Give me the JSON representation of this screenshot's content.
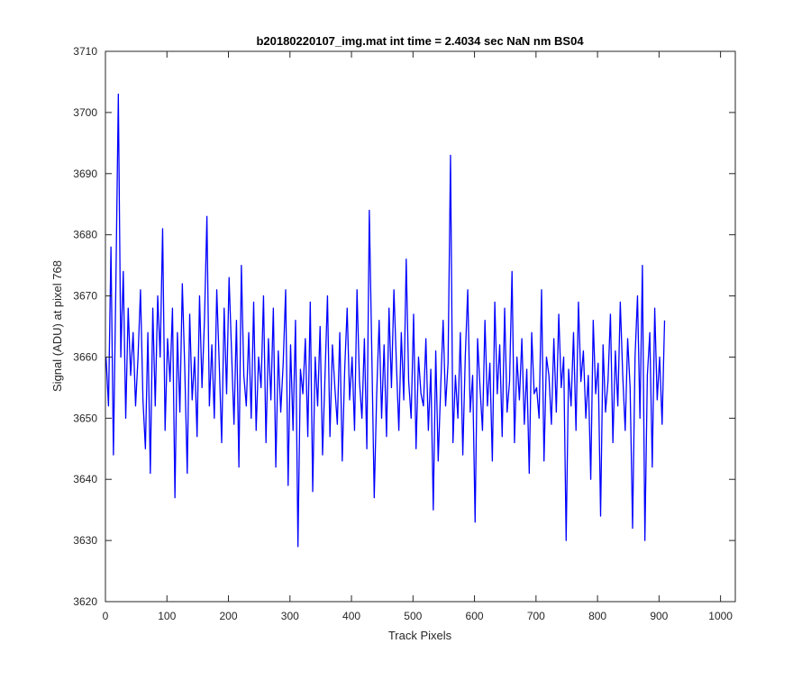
{
  "chart_data": {
    "type": "line",
    "title": "b20180220107_img.mat int time = 2.4034 sec  NaN nm BS04",
    "xlabel": "Track Pixels",
    "ylabel": "Signal (ADU) at pixel 768",
    "xlim": [
      0,
      1024
    ],
    "ylim": [
      3620,
      3710
    ],
    "xticks": [
      "0",
      "100",
      "200",
      "300",
      "400",
      "500",
      "600",
      "700",
      "800",
      "900",
      "1000"
    ],
    "yticks": [
      "3620",
      "3630",
      "3640",
      "3650",
      "3660",
      "3670",
      "3680",
      "3690",
      "3700",
      "3710"
    ],
    "grid": false,
    "line_color": "#0000ff",
    "series": [
      {
        "x_start": 1,
        "x_step": 4,
        "values": [
          3660,
          3652,
          3678,
          3644,
          3672,
          3703,
          3660,
          3674,
          3650,
          3668,
          3657,
          3664,
          3652,
          3660,
          3671,
          3653,
          3645,
          3664,
          3641,
          3668,
          3652,
          3670,
          3660,
          3681,
          3648,
          3663,
          3656,
          3668,
          3637,
          3664,
          3651,
          3672,
          3658,
          3641,
          3667,
          3653,
          3660,
          3647,
          3670,
          3655,
          3666,
          3683,
          3652,
          3662,
          3650,
          3671,
          3659,
          3646,
          3668,
          3654,
          3673,
          3661,
          3649,
          3666,
          3642,
          3675,
          3657,
          3652,
          3664,
          3650,
          3669,
          3648,
          3660,
          3655,
          3670,
          3646,
          3663,
          3653,
          3668,
          3642,
          3661,
          3651,
          3659,
          3671,
          3639,
          3662,
          3648,
          3666,
          3629,
          3658,
          3654,
          3663,
          3647,
          3669,
          3638,
          3660,
          3652,
          3665,
          3644,
          3657,
          3670,
          3647,
          3662,
          3655,
          3649,
          3664,
          3643,
          3658,
          3668,
          3653,
          3660,
          3648,
          3671,
          3656,
          3650,
          3663,
          3645,
          3684,
          3661,
          3637,
          3654,
          3666,
          3650,
          3662,
          3647,
          3668,
          3655,
          3671,
          3659,
          3648,
          3664,
          3653,
          3676,
          3656,
          3650,
          3667,
          3645,
          3660,
          3654,
          3652,
          3663,
          3648,
          3658,
          3635,
          3661,
          3643,
          3655,
          3666,
          3652,
          3659,
          3693,
          3646,
          3657,
          3650,
          3664,
          3644,
          3660,
          3671,
          3651,
          3657,
          3633,
          3663,
          3655,
          3648,
          3666,
          3652,
          3659,
          3643,
          3669,
          3654,
          3662,
          3647,
          3668,
          3651,
          3656,
          3674,
          3646,
          3660,
          3653,
          3663,
          3649,
          3658,
          3641,
          3664,
          3654,
          3655,
          3650,
          3671,
          3643,
          3660,
          3657,
          3649,
          3663,
          3651,
          3667,
          3655,
          3660,
          3630,
          3658,
          3652,
          3664,
          3648,
          3669,
          3656,
          3661,
          3650,
          3657,
          3640,
          3666,
          3654,
          3659,
          3634,
          3662,
          3651,
          3656,
          3667,
          3646,
          3661,
          3652,
          3669,
          3657,
          3648,
          3663,
          3655,
          3632,
          3660,
          3670,
          3650,
          3675,
          3630,
          3657,
          3664,
          3642,
          3668,
          3653,
          3660,
          3649,
          3666
        ]
      }
    ]
  }
}
